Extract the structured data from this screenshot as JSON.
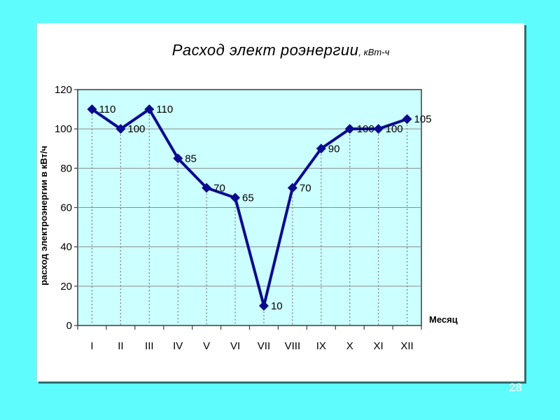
{
  "slide": {
    "page_number": "28"
  },
  "chart_data": {
    "type": "line",
    "title": "Расход элект роэнергии",
    "title_units": ", кВт-ч",
    "xlabel": "Месяц",
    "ylabel": "расход электроэнергии в кВт/ч",
    "categories": [
      "I",
      "II",
      "III",
      "IV",
      "V",
      "VI",
      "VII",
      "VIII",
      "IX",
      "X",
      "XI",
      "XII"
    ],
    "values": [
      110,
      100,
      110,
      85,
      70,
      65,
      10,
      70,
      90,
      100,
      100,
      105
    ],
    "yticks": [
      0,
      20,
      40,
      60,
      80,
      100,
      120
    ],
    "ylim": [
      0,
      120
    ],
    "grid": true,
    "drop_lines": true,
    "legend": "none",
    "marker": "diamond",
    "colors": {
      "slide_background": "#5efcfc",
      "panel_background": "#ffffff",
      "panel_shadow": "#2e6f6f",
      "plot_background": "#ccffff",
      "series_line": "#0a0a8f",
      "gridline": "#8c8c8c",
      "drop_line": "#7a7a7a",
      "axis": "#3c3c3c",
      "text": "#000000",
      "page_number": "#d9ffff"
    }
  }
}
